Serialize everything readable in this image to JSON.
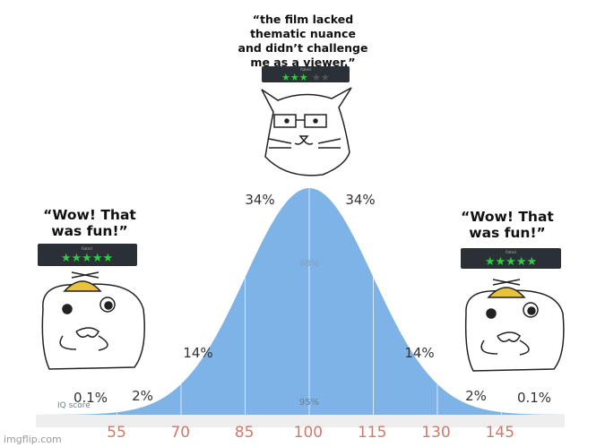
{
  "center": {
    "quote": [
      "“the film lacked",
      "thematic nuance",
      "and didn’t challenge",
      "me as a viewer.”"
    ],
    "rating_label": "Rated",
    "stars_filled": "★★★",
    "stars_empty": "★★"
  },
  "left": {
    "quote": [
      "“Wow! That",
      "was fun!”"
    ],
    "rating_label": "Rated",
    "stars_filled": "★★★★★"
  },
  "right": {
    "quote": [
      "“Wow! That",
      "was fun!”"
    ],
    "rating_label": "Rated",
    "stars_filled": "★★★★★"
  },
  "curve": {
    "labels": [
      "34%",
      "34%",
      "14%",
      "14%",
      "2%",
      "2%",
      "0.1%",
      "0.1%"
    ],
    "inner_labels": [
      "68%",
      "95%"
    ],
    "axis_label": "IQ score",
    "ticks": [
      "55",
      "70",
      "85",
      "100",
      "115",
      "130",
      "145"
    ]
  },
  "watermark": "imgflip.com"
}
